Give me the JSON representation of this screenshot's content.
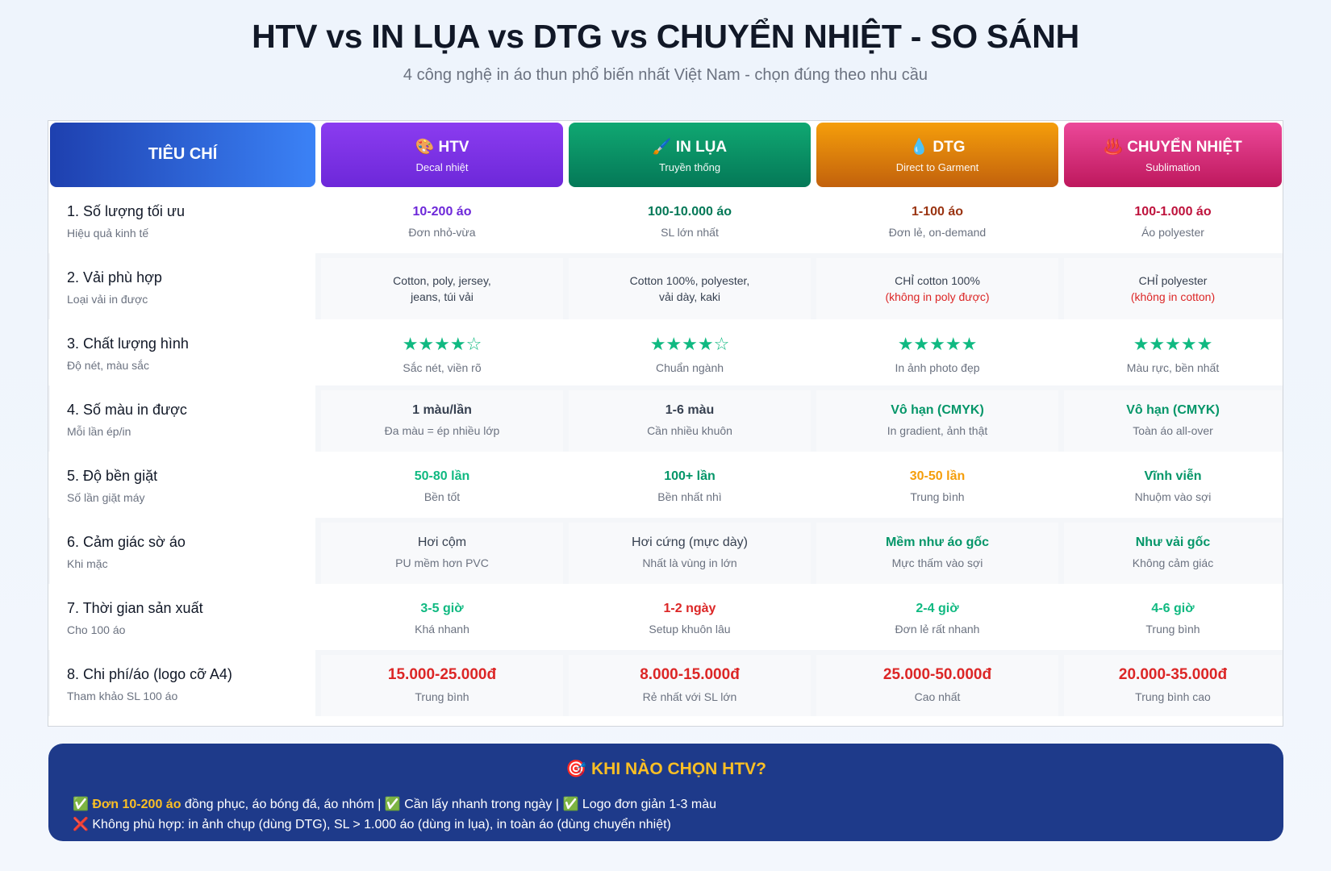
{
  "title": "HTV vs IN LỤA vs DTG vs CHUYỂN NHIỆT - SO SÁNH",
  "subtitle": "4 công nghệ in áo thun phổ biến nhất Việt Nam - chọn đúng theo nhu cầu",
  "header": {
    "criteria": "TIÊU CHÍ",
    "htv": {
      "label": "🎨 HTV",
      "sub": "Decal nhiệt"
    },
    "lua": {
      "label": "🖌️ IN LỤA",
      "sub": "Truyền thống"
    },
    "dtg": {
      "label": "💧 DTG",
      "sub": "Direct to Garment"
    },
    "cn": {
      "label": "♨️ CHUYỂN NHIỆT",
      "sub": "Sublimation"
    }
  },
  "rows": [
    {
      "title": "1. Số lượng tối ưu",
      "sub": "Hiệu quả kinh tế",
      "htv": {
        "value": "10-200 áo",
        "note": "Đơn nhỏ-vừa"
      },
      "lua": {
        "value": "100-10.000 áo",
        "note": "SL lớn nhất"
      },
      "dtg": {
        "value": "1-100 áo",
        "note": "Đơn lẻ, on-demand"
      },
      "cn": {
        "value": "100-1.000 áo",
        "note": "Áo polyester"
      }
    },
    {
      "title": "2. Vải phù hợp",
      "sub": "Loại vải in được",
      "htv": {
        "line1": "Cotton, poly, jersey,",
        "line2": "jeans, túi vải"
      },
      "lua": {
        "line1": "Cotton 100%, polyester,",
        "line2": "vải dày, kaki"
      },
      "dtg": {
        "line1": "CHỈ cotton 100%",
        "line2": "(không in poly được)"
      },
      "cn": {
        "line1": "CHỈ polyester",
        "line2": "(không in cotton)"
      }
    },
    {
      "title": "3. Chất lượng hình",
      "sub": "Độ nét, màu sắc",
      "htv": {
        "stars": "★★★★☆",
        "rating": 4,
        "note": "Sắc nét, viền rõ"
      },
      "lua": {
        "stars": "★★★★☆",
        "rating": 4,
        "note": "Chuẩn ngành"
      },
      "dtg": {
        "stars": "★★★★★",
        "rating": 5,
        "note": "In ảnh photo đẹp"
      },
      "cn": {
        "stars": "★★★★★",
        "rating": 5,
        "note": "Màu rực, bền nhất"
      }
    },
    {
      "title": "4. Số màu in được",
      "sub": "Mỗi lần ép/in",
      "htv": {
        "value": "1 màu/lần",
        "note": "Đa màu = ép nhiều lớp"
      },
      "lua": {
        "value": "1-6 màu",
        "note": "Cần nhiều khuôn"
      },
      "dtg": {
        "value": "Vô hạn (CMYK)",
        "note": "In gradient, ảnh thật"
      },
      "cn": {
        "value": "Vô hạn (CMYK)",
        "note": "Toàn áo all-over"
      }
    },
    {
      "title": "5. Độ bền giặt",
      "sub": "Số lần giặt máy",
      "htv": {
        "value": "50-80 lần",
        "note": "Bền tốt"
      },
      "lua": {
        "value": "100+ lần",
        "note": "Bền nhất nhì"
      },
      "dtg": {
        "value": "30-50 lần",
        "note": "Trung bình"
      },
      "cn": {
        "value": "Vĩnh viễn",
        "note": "Nhuộm vào sợi"
      }
    },
    {
      "title": "6. Cảm giác sờ áo",
      "sub": "Khi mặc",
      "htv": {
        "value": "Hơi cộm",
        "note": "PU mềm hơn PVC"
      },
      "lua": {
        "value": "Hơi cứng (mực dày)",
        "note": "Nhất là vùng in lớn"
      },
      "dtg": {
        "value": "Mềm như áo gốc",
        "note": "Mực thấm vào sợi"
      },
      "cn": {
        "value": "Như vải gốc",
        "note": "Không cảm giác"
      }
    },
    {
      "title": "7. Thời gian sản xuất",
      "sub": "Cho 100 áo",
      "htv": {
        "value": "3-5 giờ",
        "note": "Khá nhanh"
      },
      "lua": {
        "value": "1-2 ngày",
        "note": "Setup khuôn lâu"
      },
      "dtg": {
        "value": "2-4 giờ",
        "note": "Đơn lẻ rất nhanh"
      },
      "cn": {
        "value": "4-6 giờ",
        "note": "Trung bình"
      }
    },
    {
      "title": "8. Chi phí/áo (logo cỡ A4)",
      "sub": "Tham khảo SL 100 áo",
      "htv": {
        "value": "15.000-25.000đ",
        "note": "Trung bình"
      },
      "lua": {
        "value": "8.000-15.000đ",
        "note": "Rẻ nhất với SL lớn"
      },
      "dtg": {
        "value": "25.000-50.000đ",
        "note": "Cao nhất"
      },
      "cn": {
        "value": "20.000-35.000đ",
        "note": "Trung bình cao"
      }
    }
  ],
  "footer": {
    "title": "🎯 KHI NÀO CHỌN HTV?",
    "line1_check": "✅",
    "line1_highlight": "Đơn 10-200 áo",
    "line1_rest": " đồng phục, áo bóng đá, áo nhóm | ✅ Cần lấy nhanh trong ngày | ✅ Logo đơn giản 1-3 màu",
    "line2": "❌ Không phù hợp: in ảnh chụp (dùng DTG), SL > 1.000 áo (dùng in lụa), in toàn áo (dùng chuyển nhiệt)"
  },
  "colors": {
    "htv": "#6d28d9",
    "lua": "#047857",
    "dtg": "#c2610c",
    "cn": "#be185d",
    "criteria": "#1e40af",
    "footer_bg": "#1e3a8a",
    "highlight": "#fbbf24",
    "stars": "#10b981",
    "price": "#dc2626"
  }
}
